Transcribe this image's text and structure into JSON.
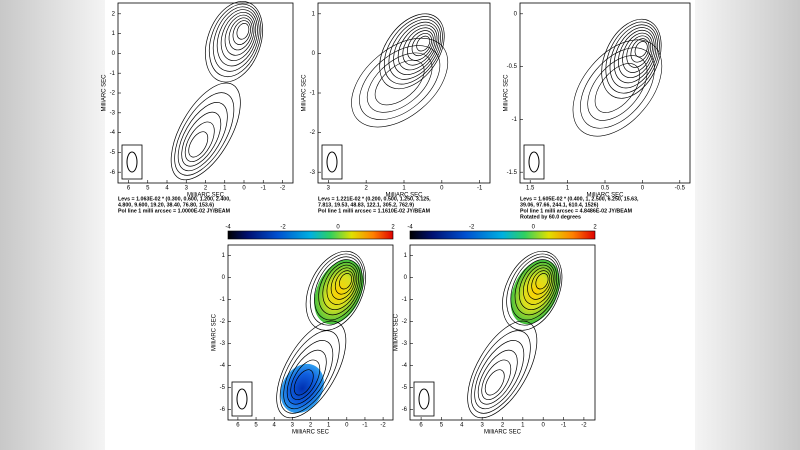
{
  "panels": [
    {
      "x_label": "MilliARC SEC",
      "y_label": "MilliARC SEC",
      "xticks": [
        6,
        5,
        4,
        3,
        2,
        1,
        0,
        -1,
        -2
      ],
      "yticks": [
        2,
        1,
        0,
        -1,
        -2,
        -3,
        -4,
        -5,
        -6
      ],
      "caption": [
        "Levs = 1.063E-02 * (0.300, 0.600, 1.200, 2.400,",
        "4.800, 9.600, 19.20, 38.40, 76.80, 153.6)",
        "Pol line 1 milli arcsec = 1.0000E-02 JY/BEAM"
      ]
    },
    {
      "x_label": "MilliARC SEC",
      "y_label": "MilliARC SEC",
      "xticks": [
        3,
        2,
        1,
        0,
        -1
      ],
      "yticks": [
        1,
        0,
        -1,
        -2,
        -3
      ],
      "caption": [
        "Levs = 1.221E-02 * (0.200, 0.500, 1.250, 3.125,",
        "7.813, 19.53, 48.83, 122.1, 305.2, 762.9)",
        "Pol line 1 milli arcsec = 1.1610E-02 JY/BEAM"
      ]
    },
    {
      "x_label": "MilliARC SEC",
      "y_label": "MilliARC SEC",
      "xticks": [
        1.5,
        1,
        0.5,
        0,
        -0.5
      ],
      "yticks": [
        0,
        -0.5,
        -1,
        -1.5
      ],
      "caption": [
        "Levs = 1.605E-02 * (0.400, 1, 2.500, 6.250, 15.63,",
        "39.06, 97.66, 244.1, 610.4, 1526)",
        "Pol line 1 milli arcsec = 4.8486E-02 JY/BEAM",
        "Rotated by 60.0 degrees"
      ]
    },
    {
      "x_label": "MilliARC SEC",
      "y_label": "MilliARC SEC",
      "xticks": [
        6,
        5,
        4,
        3,
        2,
        1,
        0,
        -1,
        -2
      ],
      "yticks": [
        1,
        0,
        -1,
        -2,
        -3,
        -4,
        -5,
        -6
      ],
      "colorbar_ticks": [
        -4,
        -2,
        0,
        2
      ]
    },
    {
      "x_label": "MilliARC SEC",
      "y_label": "MilliARC SEC",
      "xticks": [
        6,
        5,
        4,
        3,
        2,
        1,
        0,
        -1,
        -2
      ],
      "yticks": [
        1,
        0,
        -1,
        -2,
        -3,
        -4,
        -5,
        -6
      ],
      "colorbar_ticks": [
        -4,
        -2,
        0,
        2
      ]
    }
  ]
}
